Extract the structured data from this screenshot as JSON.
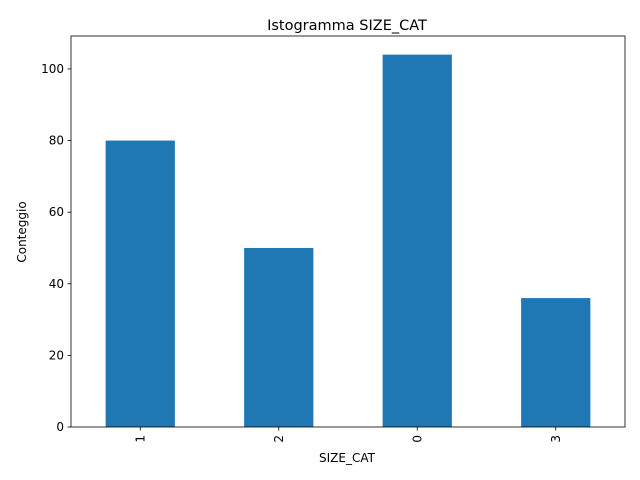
{
  "chart_data": {
    "type": "bar",
    "title": "Istogramma SIZE_CAT",
    "xlabel": "SIZE_CAT",
    "ylabel": "Conteggio",
    "categories": [
      "1",
      "2",
      "0",
      "3"
    ],
    "values": [
      80,
      50,
      104,
      36
    ],
    "ylim": [
      0,
      109.2
    ],
    "yticks": [
      0,
      20,
      40,
      60,
      80,
      100
    ],
    "x_tick_rotation": 90,
    "grid": false,
    "bar_color": "#1f77b4"
  }
}
